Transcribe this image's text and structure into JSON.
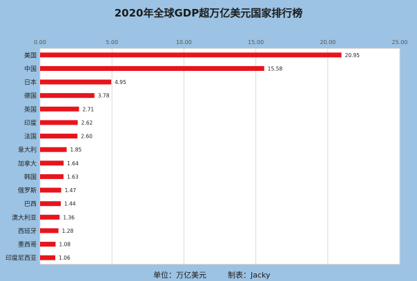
{
  "chart_data": {
    "type": "bar",
    "orientation": "horizontal",
    "title": "2020年全球GDP超万亿美元国家排行榜",
    "categories": [
      "美国",
      "中国",
      "日本",
      "德国",
      "英国",
      "印度",
      "法国",
      "意大利",
      "加拿大",
      "韩国",
      "俄罗斯",
      "巴西",
      "澳大利亚",
      "西班牙",
      "墨西哥",
      "印度尼西亚"
    ],
    "values": [
      20.95,
      15.58,
      4.95,
      3.78,
      2.71,
      2.62,
      2.6,
      1.85,
      1.64,
      1.63,
      1.47,
      1.44,
      1.36,
      1.28,
      1.08,
      1.06
    ],
    "data_labels": [
      "20.95",
      "15.58",
      "4.95",
      "3.78",
      "2.71",
      "2.62",
      "2.60",
      "1.85",
      "1.64",
      "1.63",
      "1.47",
      "1.44",
      "1.36",
      "1.28",
      "1.08",
      "1.06"
    ],
    "xlim": [
      0,
      25
    ],
    "x_ticks": [
      "0.00",
      "5.00",
      "10.00",
      "15.00",
      "20.00",
      "25.00"
    ],
    "x_axis_position": "top",
    "grid": true,
    "bar_color": "#e8141c"
  },
  "footer": {
    "unit": "单位：万亿美元",
    "author": "制表：Jacky"
  }
}
